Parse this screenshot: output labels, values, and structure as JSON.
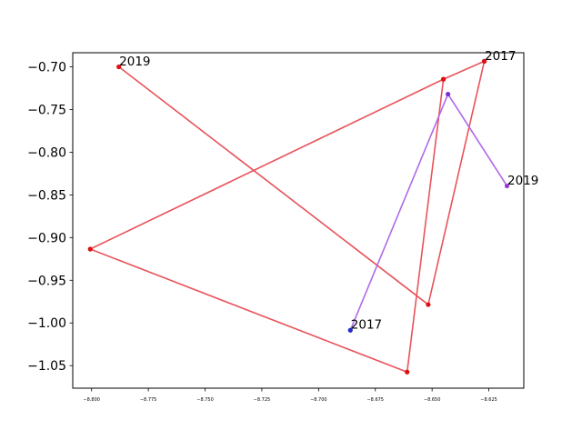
{
  "chart_data": {
    "type": "line",
    "title": "",
    "xlabel": "",
    "ylabel": "",
    "xlim": [
      -8.8083,
      -8.6096
    ],
    "ylim": [
      -1.0764,
      -0.6835
    ],
    "x_ticks": [
      {
        "value": -8.8,
        "label": "−8.800"
      },
      {
        "value": -8.775,
        "label": "−8.775"
      },
      {
        "value": -8.75,
        "label": "−8.750"
      },
      {
        "value": -8.725,
        "label": "−8.725"
      },
      {
        "value": -8.7,
        "label": "−8.700"
      },
      {
        "value": -8.675,
        "label": "−8.675"
      },
      {
        "value": -8.65,
        "label": "−8.650"
      },
      {
        "value": -8.625,
        "label": "−8.625"
      }
    ],
    "y_ticks": [
      {
        "value": -0.7,
        "label": "−0.70"
      },
      {
        "value": -0.75,
        "label": "−0.75"
      },
      {
        "value": -0.8,
        "label": "−0.80"
      },
      {
        "value": -0.85,
        "label": "−0.85"
      },
      {
        "value": -0.9,
        "label": "−0.90"
      },
      {
        "value": -0.95,
        "label": "−0.95"
      },
      {
        "value": -1.0,
        "label": "−1.00"
      },
      {
        "value": -1.05,
        "label": "−1.05"
      }
    ],
    "grid": false,
    "series": [
      {
        "line_color": "#e8535b",
        "points": [
          {
            "x": -8.627,
            "y": -0.6935,
            "color": "#1f2bd0",
            "label": "2017"
          },
          {
            "x": -8.645,
            "y": -0.7145,
            "color": "#e01010"
          },
          {
            "x": -8.8006,
            "y": -0.9135,
            "color": "#e01010"
          },
          {
            "x": -8.661,
            "y": -1.0575,
            "color": "#e01010"
          },
          {
            "x": -8.645,
            "y": -0.7145,
            "color": "#e01010"
          },
          {
            "x": -8.627,
            "y": -0.6935,
            "color": "#e01010"
          },
          {
            "x": -8.6517,
            "y": -0.9785,
            "color": "#e01010"
          },
          {
            "x": -8.788,
            "y": -0.7,
            "color": "#e01010",
            "label": "2019"
          }
        ]
      },
      {
        "line_color": "#b06ae8",
        "points": [
          {
            "x": -8.686,
            "y": -1.0085,
            "color": "#1f2bd0",
            "label": "2017"
          },
          {
            "x": -8.643,
            "y": -0.732,
            "color": "#7a2ad8"
          },
          {
            "x": -8.617,
            "y": -0.8395,
            "color": "#9a3ad8",
            "label": "2019"
          }
        ]
      }
    ]
  }
}
